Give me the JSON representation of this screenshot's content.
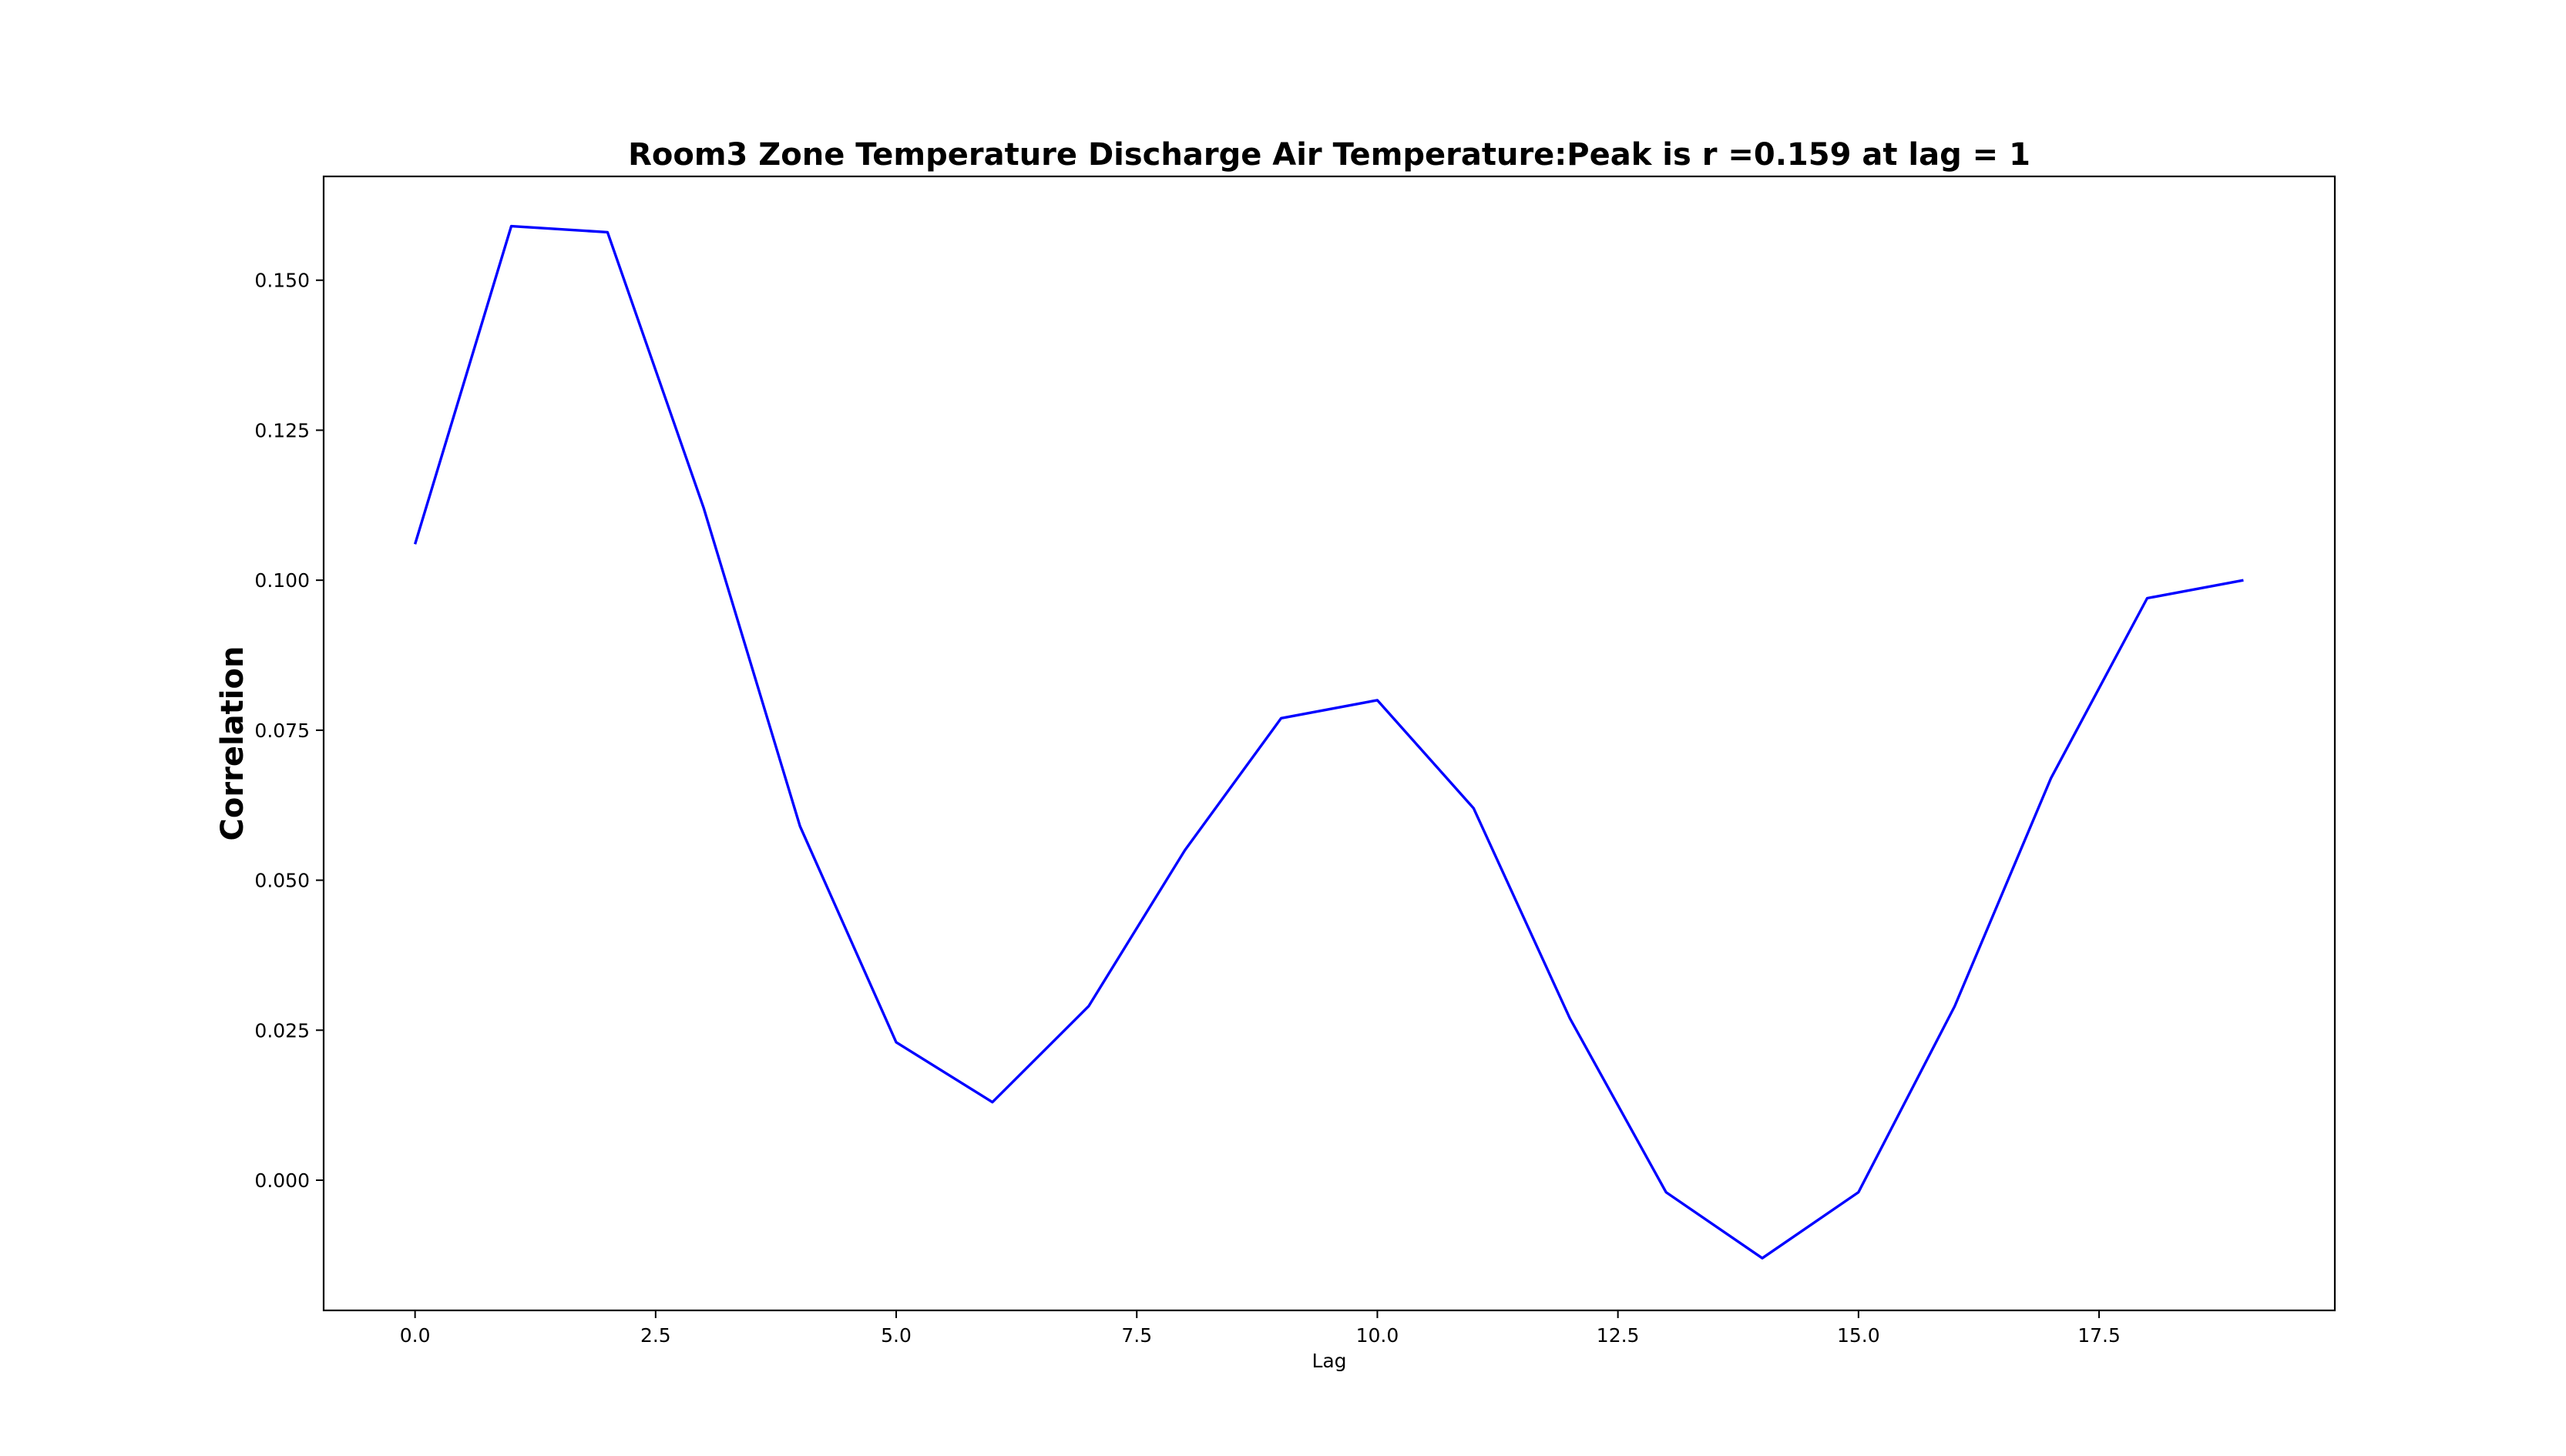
{
  "chart_data": {
    "type": "line",
    "title": "Room3 Zone Temperature Discharge Air Temperature:Peak is r =0.159 at lag = 1",
    "xlabel": "Lag",
    "ylabel": "Correlation",
    "xlim": [
      -0.95,
      19.95
    ],
    "ylim": [
      -0.0217,
      0.1673
    ],
    "x_ticks": [
      0.0,
      2.5,
      5.0,
      7.5,
      10.0,
      12.5,
      15.0,
      17.5
    ],
    "x_tick_labels": [
      "0.0",
      "2.5",
      "5.0",
      "7.5",
      "10.0",
      "12.5",
      "15.0",
      "17.5"
    ],
    "y_ticks": [
      0.0,
      0.025,
      0.05,
      0.075,
      0.1,
      0.125,
      0.15
    ],
    "y_tick_labels": [
      "0.000",
      "0.025",
      "0.050",
      "0.075",
      "0.100",
      "0.125",
      "0.150"
    ],
    "grid": false,
    "legend": "none",
    "series": [
      {
        "color": "#0000ff",
        "x": [
          0,
          1,
          2,
          3,
          4,
          5,
          6,
          7,
          8,
          9,
          10,
          11,
          12,
          13,
          14,
          15,
          16,
          17,
          18,
          19
        ],
        "values": [
          0.106,
          0.159,
          0.158,
          0.112,
          0.059,
          0.023,
          0.013,
          0.029,
          0.055,
          0.077,
          0.08,
          0.062,
          0.027,
          -0.002,
          -0.013,
          -0.002,
          0.029,
          0.067,
          0.097,
          0.1
        ]
      }
    ]
  }
}
